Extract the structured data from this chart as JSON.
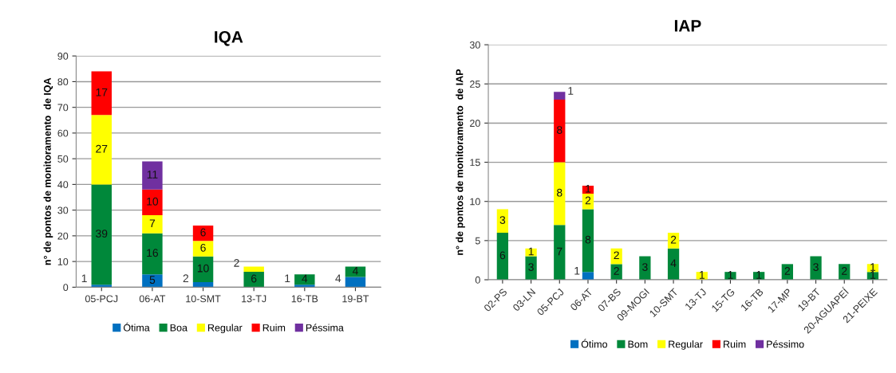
{
  "chart_data": [
    {
      "type": "bar",
      "stacked": true,
      "title": "IQA",
      "ylabel": "n° de pontos de monitoramento  de IQA",
      "categories": [
        "05-PCJ",
        "06-AT",
        "10-SMT",
        "13-TJ",
        "16-TB",
        "19-BT"
      ],
      "ylim": [
        0,
        90
      ],
      "yticks": [
        0,
        10,
        20,
        30,
        40,
        50,
        60,
        70,
        80,
        90
      ],
      "grid": "y",
      "legend": "bottom",
      "series": [
        {
          "name": "Ótima",
          "color": "#0070c0",
          "values": [
            1,
            5,
            2,
            0,
            1,
            4
          ],
          "value_labels": [
            "1",
            "5",
            "2",
            null,
            "1",
            "4"
          ]
        },
        {
          "name": "Boa",
          "color": "#00883a",
          "values": [
            39,
            16,
            10,
            6,
            4,
            4
          ],
          "value_labels": [
            "39",
            "16",
            "10",
            "6",
            "4",
            "4"
          ]
        },
        {
          "name": "Regular",
          "color": "#ffff00",
          "values": [
            27,
            7,
            6,
            2,
            0,
            0
          ],
          "value_labels": [
            "27",
            "7",
            "6",
            "2",
            null,
            null
          ]
        },
        {
          "name": "Ruim",
          "color": "#ff0000",
          "values": [
            17,
            10,
            6,
            0,
            0,
            0
          ],
          "value_labels": [
            "17",
            "10",
            "6",
            null,
            null,
            null
          ]
        },
        {
          "name": "Péssima",
          "color": "#7030a0",
          "values": [
            0,
            11,
            0,
            0,
            0,
            0
          ],
          "value_labels": [
            null,
            "11",
            null,
            null,
            null,
            null
          ]
        }
      ]
    },
    {
      "type": "bar",
      "stacked": true,
      "title": "IAP",
      "ylabel": "n° de pontos de monitoramento  de IAP",
      "categories": [
        "02-PS",
        "03-LN",
        "05-PCJ",
        "06-AT",
        "07-BS",
        "09-MOGI",
        "10-SMT",
        "13-TJ",
        "15-TG",
        "16-TB",
        "17-MP",
        "19-BT",
        "20-AGUAPEÍ",
        "21-PEIXE"
      ],
      "ylim": [
        0,
        30
      ],
      "yticks": [
        0,
        5,
        10,
        15,
        20,
        25,
        30
      ],
      "grid": "y",
      "legend": "bottom",
      "series": [
        {
          "name": "Ótimo",
          "color": "#0070c0",
          "values": [
            0,
            0,
            0,
            1,
            0,
            0,
            0,
            0,
            0,
            0,
            0,
            0,
            0,
            0
          ],
          "value_labels": [
            null,
            null,
            null,
            "1",
            null,
            null,
            null,
            null,
            null,
            null,
            null,
            null,
            null,
            null
          ]
        },
        {
          "name": "Bom",
          "color": "#00883a",
          "values": [
            6,
            3,
            7,
            8,
            2,
            3,
            4,
            0,
            1,
            1,
            2,
            3,
            2,
            1
          ],
          "value_labels": [
            "6",
            "3",
            "7",
            "8",
            "2",
            "3",
            "4",
            null,
            "1",
            "1",
            "2",
            "3",
            "2",
            "1"
          ]
        },
        {
          "name": "Regular",
          "color": "#ffff00",
          "values": [
            3,
            1,
            8,
            2,
            2,
            0,
            2,
            1,
            0,
            0,
            0,
            0,
            0,
            1
          ],
          "value_labels": [
            "3",
            "1",
            "8",
            "2",
            "2",
            null,
            "2",
            "1",
            null,
            null,
            null,
            null,
            null,
            "1"
          ]
        },
        {
          "name": "Ruim",
          "color": "#ff0000",
          "values": [
            0,
            0,
            8,
            1,
            0,
            0,
            0,
            0,
            0,
            0,
            0,
            0,
            0,
            0
          ],
          "value_labels": [
            null,
            null,
            "8",
            "1",
            null,
            null,
            null,
            null,
            null,
            null,
            null,
            null,
            null,
            null
          ]
        },
        {
          "name": "Péssimo",
          "color": "#7030a0",
          "values": [
            0,
            0,
            1,
            0,
            0,
            0,
            0,
            0,
            0,
            0,
            0,
            0,
            0,
            0
          ],
          "value_labels": [
            null,
            null,
            "1",
            null,
            null,
            null,
            null,
            null,
            null,
            null,
            null,
            null,
            null,
            null
          ]
        }
      ]
    }
  ]
}
